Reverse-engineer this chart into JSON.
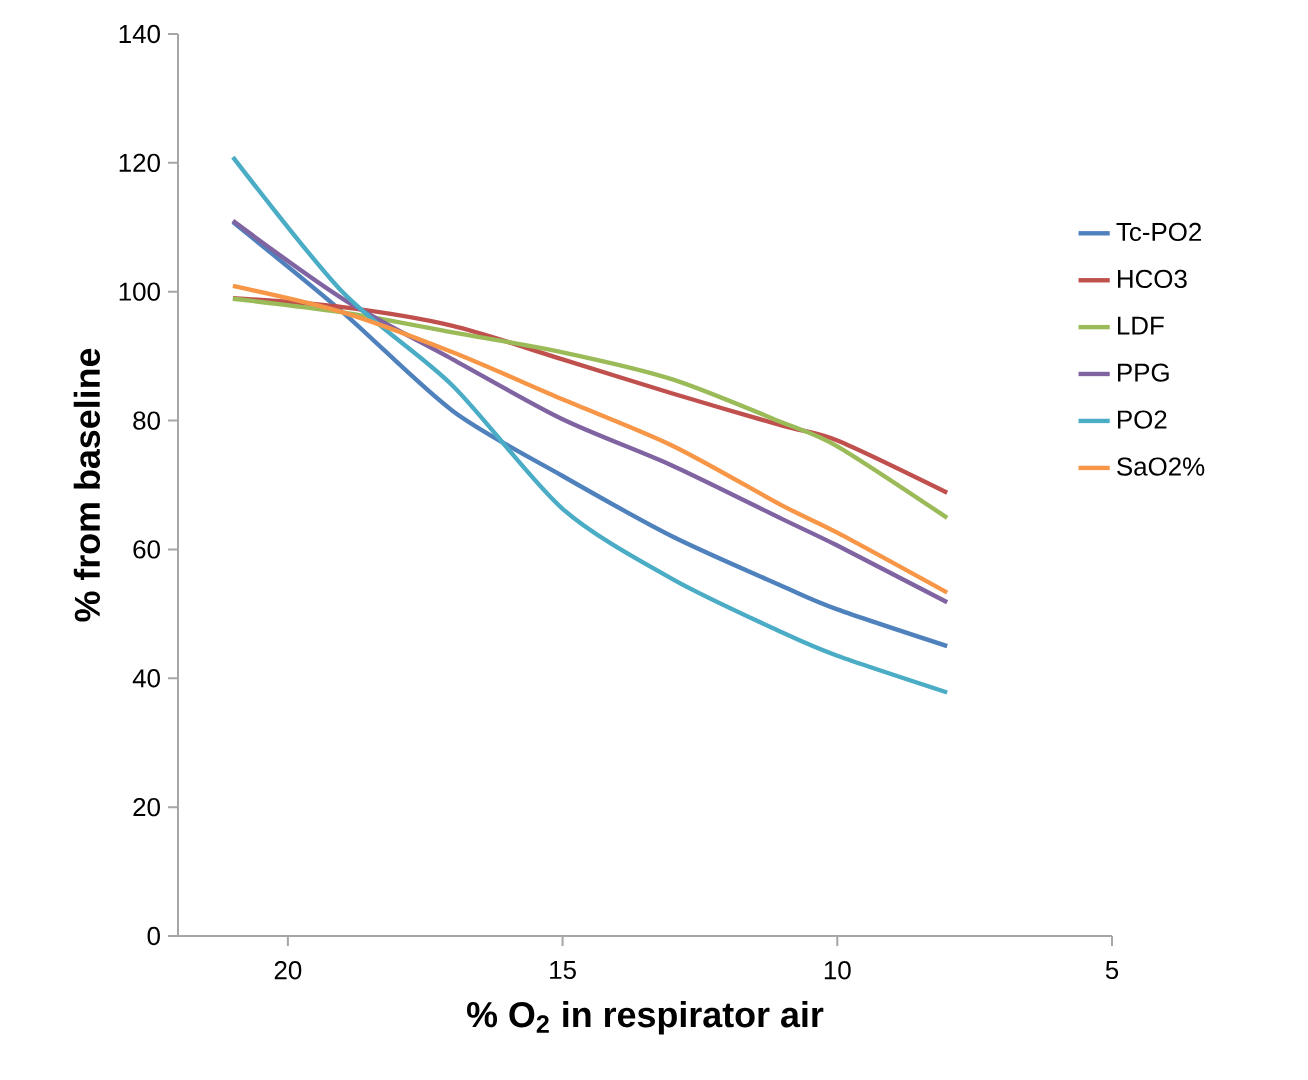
{
  "chart_data": {
    "type": "line",
    "xlabel": "% O$_{2}$  in respirator air",
    "ylabel": "% from  baseline",
    "x": [
      21,
      19,
      17,
      15,
      13,
      11,
      10,
      8
    ],
    "series": [
      {
        "name": "Tc-PO2",
        "color": "#4f81bd",
        "values": [
          110.8,
          96.8,
          81.5,
          71.4,
          62,
          54.3,
          50.7,
          45
        ]
      },
      {
        "name": "HCO3",
        "color": "#c0504d",
        "values": [
          99,
          97.6,
          94.7,
          89.5,
          84.2,
          79.2,
          76.9,
          68.8
        ]
      },
      {
        "name": "LDF",
        "color": "#9bbb59",
        "values": [
          98.9,
          96.8,
          93.7,
          90.6,
          86.4,
          79.7,
          76,
          64.9
        ]
      },
      {
        "name": "PPG",
        "color": "#8064a2",
        "values": [
          111,
          98.9,
          89.5,
          80.2,
          73,
          64.7,
          60.6,
          51.8
        ]
      },
      {
        "name": "PO2",
        "color": "#4bacc6",
        "values": [
          120.9,
          99.9,
          85.4,
          66.3,
          55.4,
          47.1,
          43.5,
          37.8
        ]
      },
      {
        "name": "SaO2%",
        "color": "#f79646",
        "values": [
          100.9,
          96.8,
          90.6,
          83.3,
          76.1,
          66.8,
          62.6,
          53.3
        ]
      }
    ],
    "xlim": [
      22,
      5
    ],
    "xticks": [
      20,
      15,
      10,
      5
    ],
    "ylim": [
      0,
      140
    ],
    "yticks": [
      0,
      20,
      40,
      60,
      80,
      100,
      120,
      140
    ],
    "grid": false,
    "legend": "right",
    "marker": "none",
    "line_style": "solid"
  }
}
